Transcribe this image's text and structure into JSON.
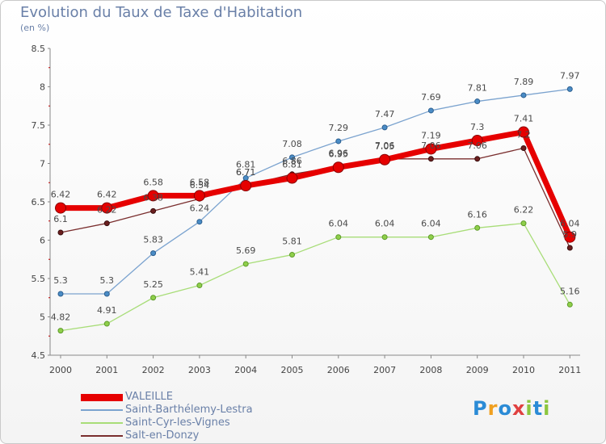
{
  "title": "Evolution du Taux de Taxe d'Habitation",
  "subtitle": "(en %)",
  "logo": "Proxiti",
  "chart_data": {
    "type": "line",
    "categories": [
      "2000",
      "2001",
      "2002",
      "2003",
      "2004",
      "2005",
      "2006",
      "2007",
      "2008",
      "2009",
      "2010",
      "2011"
    ],
    "ylim": [
      4.5,
      8.5
    ],
    "yticks": [
      "4.5",
      "5",
      "5.5",
      "6",
      "6.5",
      "7",
      "7.5",
      "8",
      "8.5"
    ],
    "grid": false,
    "legend_position": "bottom-left",
    "series": [
      {
        "name": "VALEILLE",
        "color": "#e60000",
        "values": [
          6.42,
          6.42,
          6.58,
          6.58,
          6.71,
          6.81,
          6.95,
          7.05,
          7.19,
          7.3,
          7.41,
          6.04
        ],
        "labels": [
          "6.42",
          "6.42",
          "6.58",
          "6.58",
          "6.71",
          "6.81",
          "6.95",
          "7.05",
          "7.19",
          "7.3",
          "7.41",
          "6.04"
        ]
      },
      {
        "name": "Saint-Barthélemy-Lestra",
        "color": "#7ba3cf",
        "values": [
          5.3,
          5.3,
          5.83,
          6.24,
          6.81,
          7.08,
          7.29,
          7.47,
          7.69,
          7.81,
          7.89,
          7.97
        ],
        "labels": [
          "5.3",
          "5.3",
          "5.83",
          "6.24",
          "6.81",
          "7.08",
          "7.29",
          "7.47",
          "7.69",
          "7.81",
          "7.89",
          "7.97"
        ]
      },
      {
        "name": "Saint-Cyr-les-Vignes",
        "color": "#a8dd78",
        "values": [
          4.82,
          4.91,
          5.25,
          5.41,
          5.69,
          5.81,
          6.04,
          6.04,
          6.04,
          6.16,
          6.22,
          5.16
        ],
        "labels": [
          "4.82",
          "4.91",
          "5.25",
          "5.41",
          "5.69",
          "5.81",
          "6.04",
          "6.04",
          "6.04",
          "6.16",
          "6.22",
          "5.16"
        ]
      },
      {
        "name": "Salt-en-Donzy",
        "color": "#7a2e2e",
        "values": [
          6.1,
          6.22,
          6.38,
          6.54,
          6.71,
          6.86,
          6.96,
          7.06,
          7.06,
          7.06,
          7.2,
          5.9
        ],
        "labels": [
          "6.1",
          "6.22",
          "6.38",
          "6.54",
          "6.71",
          "6.86",
          "6.96",
          "7.06",
          "7.06",
          "7.06",
          "7.2",
          "5.9"
        ]
      }
    ]
  }
}
